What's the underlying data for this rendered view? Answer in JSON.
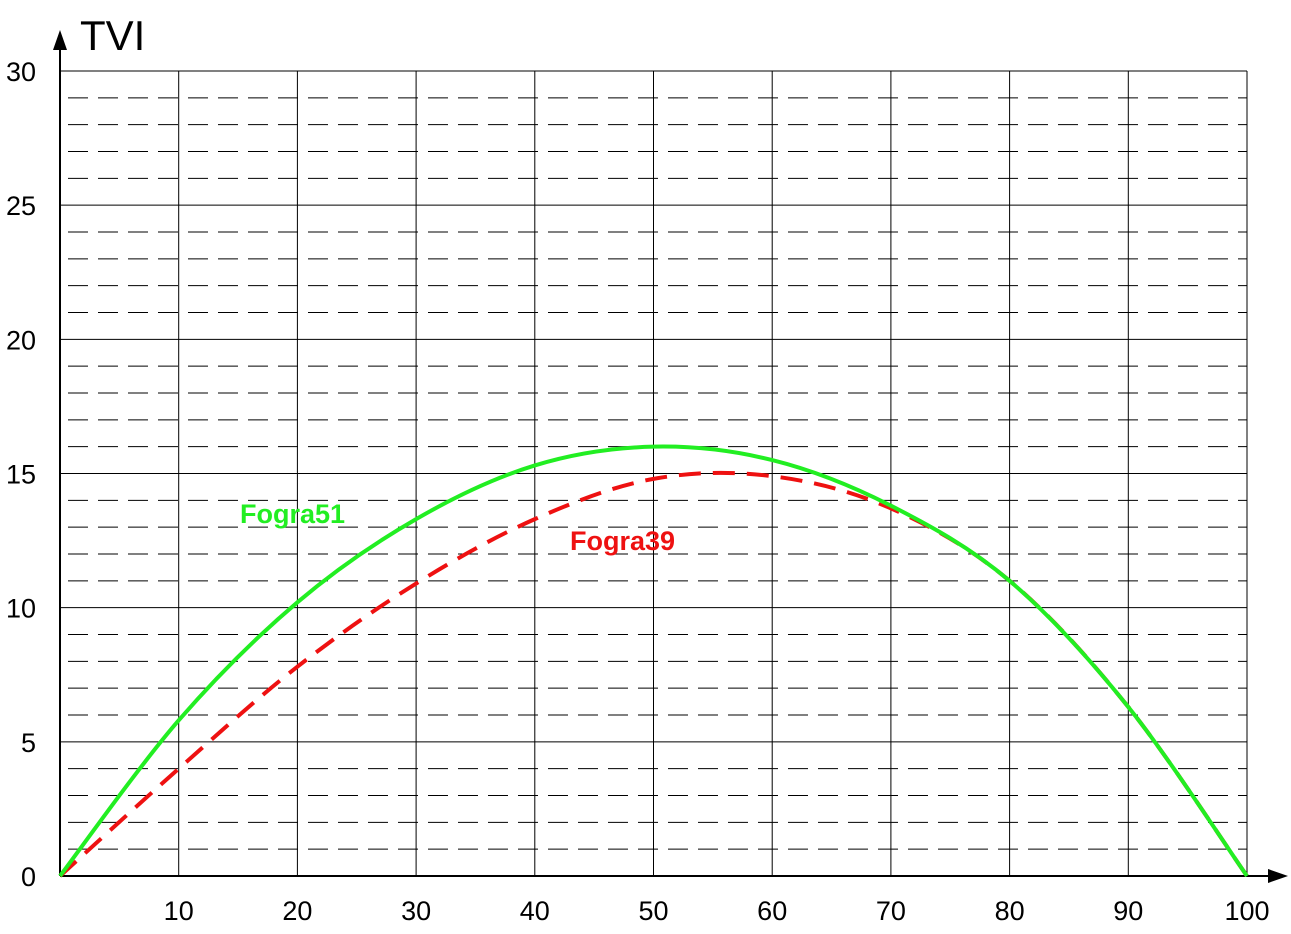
{
  "chart_data": {
    "type": "line",
    "title": "",
    "xlabel": "",
    "ylabel": "TVI",
    "xlim": [
      0,
      100
    ],
    "ylim": [
      0,
      30
    ],
    "x_ticks": [
      10,
      20,
      30,
      40,
      50,
      60,
      70,
      80,
      90,
      100
    ],
    "y_ticks": [
      0,
      5,
      10,
      15,
      20,
      25,
      30
    ],
    "grid": true,
    "legend": "inline",
    "series": [
      {
        "name": "Fogra51",
        "color": "#22ee22",
        "style": "solid",
        "x": [
          0,
          10,
          20,
          30,
          40,
          50,
          60,
          70,
          80,
          90,
          100
        ],
        "y": [
          0,
          5.8,
          10.2,
          13.3,
          15.3,
          16.0,
          15.5,
          13.8,
          11.0,
          6.3,
          0
        ]
      },
      {
        "name": "Fogra39",
        "color": "#ee1111",
        "style": "dashed",
        "x": [
          0,
          10,
          20,
          30,
          40,
          50,
          60,
          70,
          80,
          90,
          100
        ],
        "y": [
          0,
          4.0,
          7.8,
          10.9,
          13.3,
          14.8,
          14.9,
          13.7,
          11.0,
          6.3,
          0
        ]
      }
    ]
  }
}
